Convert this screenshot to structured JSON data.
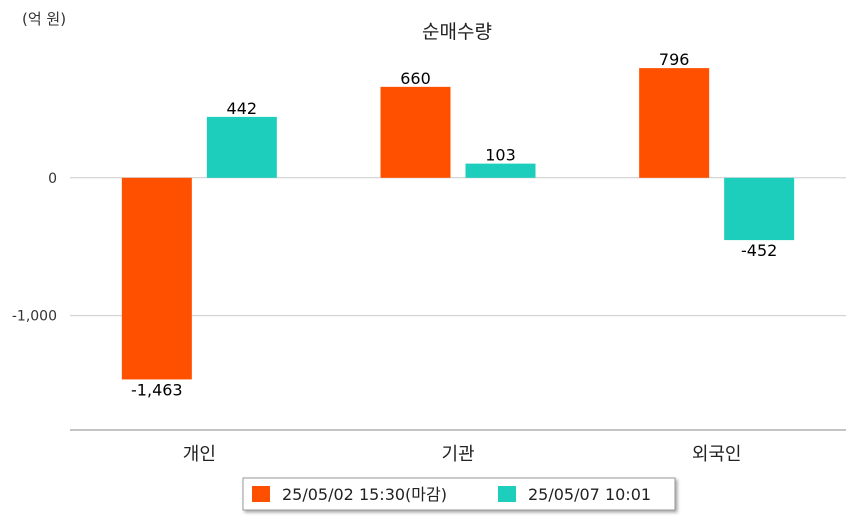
{
  "chart_data": {
    "type": "bar",
    "title": "순매수량",
    "unit_label": "(억 원)",
    "categories": [
      "개인",
      "기관",
      "외국인"
    ],
    "series": [
      {
        "name": "25/05/02 15:30(마감)",
        "color": "#ff5000",
        "values": [
          -1463,
          660,
          796
        ],
        "labels": [
          "-1,463",
          "660",
          "796"
        ]
      },
      {
        "name": "25/05/07 10:01",
        "color": "#1ecebc",
        "values": [
          442,
          103,
          -452
        ],
        "labels": [
          "442",
          "103",
          "-452"
        ]
      }
    ],
    "yticks": [
      {
        "value": 0,
        "label": "0"
      },
      {
        "value": -1000,
        "label": "-1,000"
      }
    ],
    "ylim": [
      -1830,
      1000
    ],
    "grid": true,
    "legend_position": "bottom"
  }
}
